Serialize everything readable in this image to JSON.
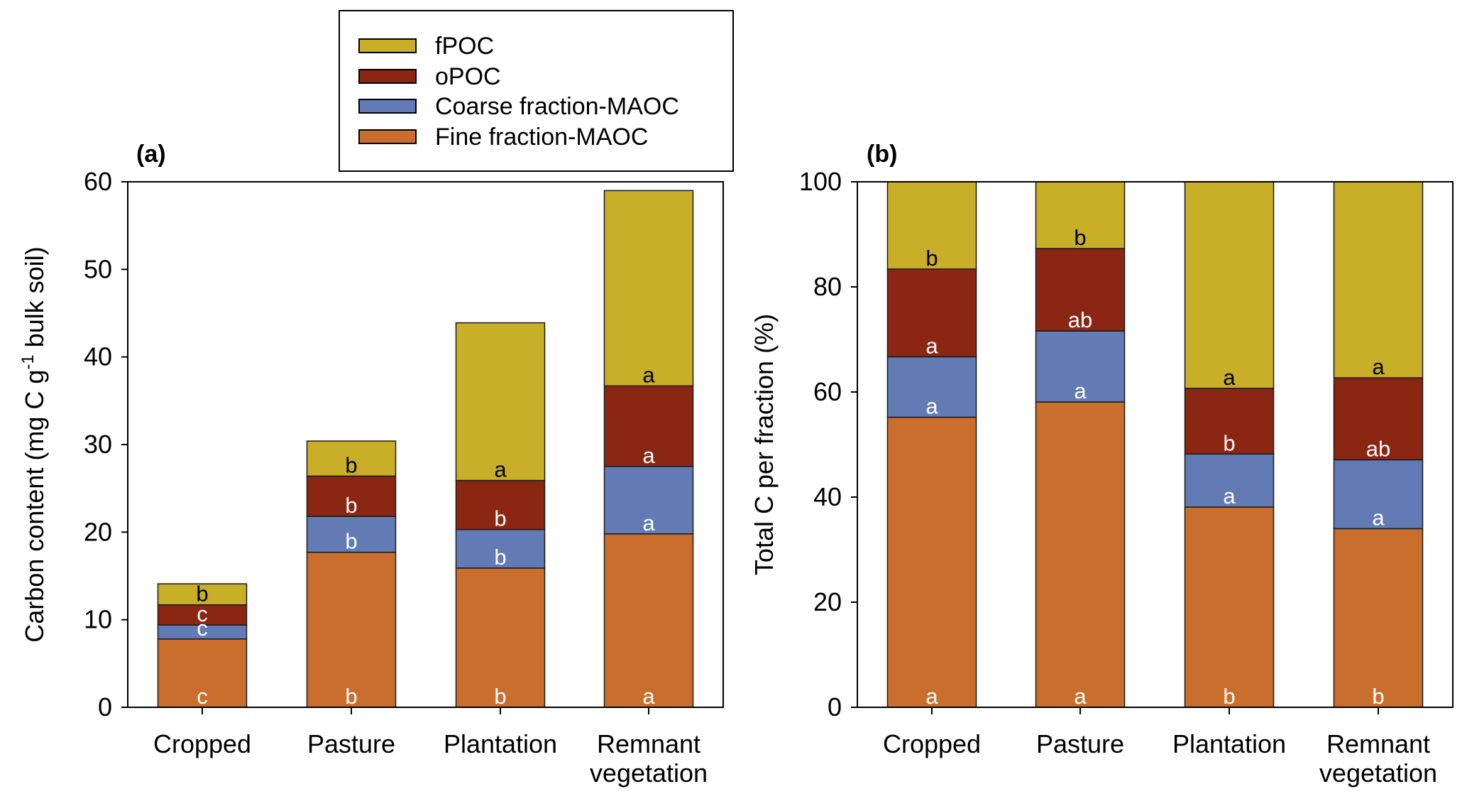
{
  "legend": {
    "items": [
      {
        "label": "fPOC",
        "color": "#C9AE27"
      },
      {
        "label": "oPOC",
        "color": "#8B2612"
      },
      {
        "label": "Coarse fraction-MAOC",
        "color": "#627BB4"
      },
      {
        "label": "Fine fraction-MAOC",
        "color": "#C96E2C"
      }
    ]
  },
  "chart_data": [
    {
      "type": "bar",
      "stacked": true,
      "panel_label": "(a)",
      "title": "",
      "xlabel": "",
      "ylabel": "Carbon content (mg C g",
      "ylabel_superscript": "-1",
      "ylabel_suffix": " bulk soil)",
      "ylim": [
        0,
        60
      ],
      "yticks": [
        0,
        10,
        20,
        30,
        40,
        50,
        60
      ],
      "categories": [
        {
          "line1": "Cropped",
          "line2": ""
        },
        {
          "line1": "Pasture",
          "line2": ""
        },
        {
          "line1": "Plantation",
          "line2": ""
        },
        {
          "line1": "Remnant",
          "line2": "vegetation"
        }
      ],
      "series": [
        {
          "name": "Fine fraction-MAOC",
          "color": "#C96E2C",
          "letter_color": "#ffffff",
          "values": [
            7.8,
            17.7,
            15.9,
            19.8
          ],
          "letters": [
            "c",
            "b",
            "b",
            "a"
          ]
        },
        {
          "name": "Coarse fraction-MAOC",
          "color": "#627BB4",
          "letter_color": "#ffffff",
          "values": [
            1.6,
            4.1,
            4.4,
            7.7
          ],
          "letters": [
            "c",
            "b",
            "b",
            "a"
          ]
        },
        {
          "name": "oPOC",
          "color": "#8B2612",
          "letter_color": "#ffffff",
          "values": [
            2.3,
            4.6,
            5.6,
            9.2
          ],
          "letters": [
            "c",
            "b",
            "b",
            "a"
          ]
        },
        {
          "name": "fPOC",
          "color": "#C9AE27",
          "letter_color": "#000000",
          "values": [
            2.4,
            4.0,
            18.0,
            22.3
          ],
          "letters": [
            "b",
            "b",
            "a",
            "a"
          ]
        }
      ],
      "grid": false,
      "legend_position": "top-center"
    },
    {
      "type": "bar",
      "stacked": true,
      "panel_label": "(b)",
      "title": "",
      "xlabel": "",
      "ylabel": "Total C per fraction (%)",
      "ylabel_superscript": "",
      "ylabel_suffix": "",
      "ylim": [
        0,
        100
      ],
      "yticks": [
        0,
        20,
        40,
        60,
        80,
        100
      ],
      "categories": [
        {
          "line1": "Cropped",
          "line2": ""
        },
        {
          "line1": "Pasture",
          "line2": ""
        },
        {
          "line1": "Plantation",
          "line2": ""
        },
        {
          "line1": "Remnant",
          "line2": "vegetation"
        }
      ],
      "series": [
        {
          "name": "Fine fraction-MAOC",
          "color": "#C96E2C",
          "letter_color": "#ffffff",
          "values": [
            55.2,
            58.1,
            38.1,
            34.0
          ],
          "letters": [
            "a",
            "a",
            "b",
            "b"
          ]
        },
        {
          "name": "Coarse fraction-MAOC",
          "color": "#627BB4",
          "letter_color": "#ffffff",
          "values": [
            11.5,
            13.5,
            10.1,
            13.1
          ],
          "letters": [
            "a",
            "a",
            "a",
            "a"
          ]
        },
        {
          "name": "oPOC",
          "color": "#8B2612",
          "letter_color": "#ffffff",
          "values": [
            16.7,
            15.7,
            12.5,
            15.6
          ],
          "letters": [
            "a",
            "ab",
            "b",
            "ab"
          ]
        },
        {
          "name": "fPOC",
          "color": "#C9AE27",
          "letter_color": "#000000",
          "values": [
            16.6,
            12.7,
            39.3,
            37.3
          ],
          "letters": [
            "b",
            "b",
            "a",
            "a"
          ]
        }
      ],
      "grid": false,
      "legend_position": "top-center"
    }
  ]
}
